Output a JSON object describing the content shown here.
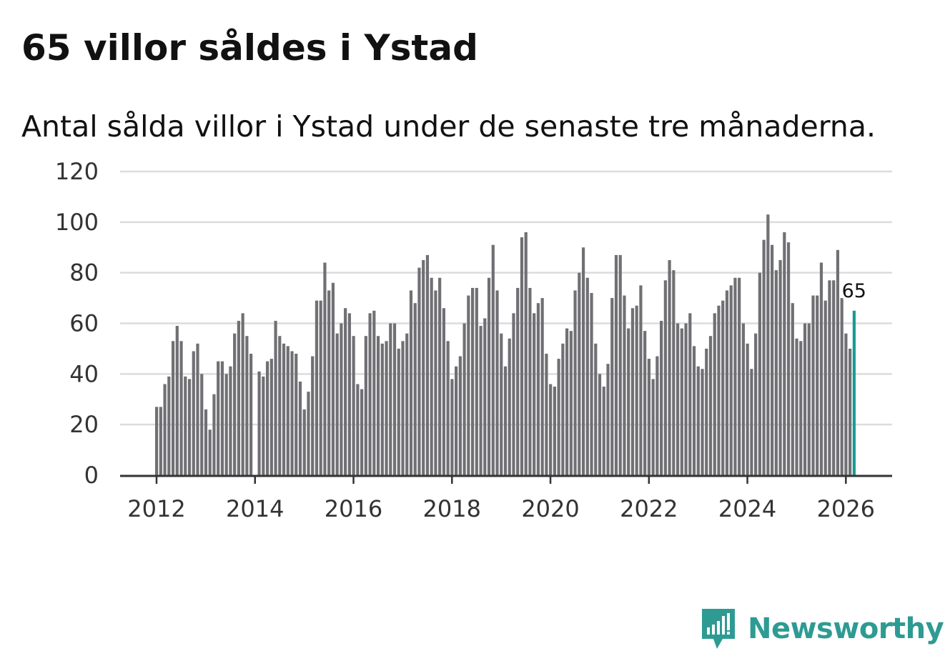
{
  "title": "65 villor såldes i Ystad",
  "subtitle": "Antal sålda villor i Ystad under de senaste tre månaderna.",
  "brand": {
    "name": "Newsworthy",
    "color": "#2e9b93",
    "icon": "bar-chart-speech-bubble-icon"
  },
  "colors": {
    "bar": "#707074",
    "highlight": "#1b9a93",
    "grid": "#dcdcdc",
    "axis": "#333333"
  },
  "chart_data": {
    "type": "bar",
    "title": "65 villor såldes i Ystad",
    "subtitle": "Antal sålda villor i Ystad under de senaste tre månaderna.",
    "xlabel": "",
    "ylabel": "",
    "ylim": [
      0,
      120
    ],
    "yticks": [
      0,
      20,
      40,
      60,
      80,
      100,
      120
    ],
    "xticks": [
      "2012",
      "2014",
      "2016",
      "2018",
      "2020",
      "2022",
      "2024",
      "2026"
    ],
    "grid": true,
    "legend": "none",
    "first_period": "2012-01",
    "last_period": "2026-03",
    "highlight_label": "65",
    "values": [
      27,
      27,
      36,
      39,
      53,
      59,
      53,
      39,
      38,
      49,
      52,
      40,
      26,
      18,
      32,
      45,
      45,
      40,
      43,
      56,
      61,
      64,
      55,
      48,
      0,
      41,
      39,
      45,
      46,
      61,
      55,
      52,
      51,
      49,
      48,
      37,
      26,
      33,
      47,
      69,
      69,
      84,
      73,
      76,
      56,
      60,
      66,
      64,
      55,
      36,
      34,
      55,
      64,
      65,
      55,
      52,
      53,
      60,
      60,
      50,
      53,
      56,
      73,
      68,
      82,
      85,
      87,
      78,
      73,
      78,
      66,
      53,
      38,
      43,
      47,
      60,
      71,
      74,
      74,
      59,
      62,
      78,
      91,
      73,
      56,
      43,
      54,
      64,
      74,
      94,
      96,
      74,
      64,
      68,
      70,
      48,
      36,
      35,
      46,
      52,
      58,
      57,
      73,
      80,
      90,
      78,
      72,
      52,
      40,
      35,
      44,
      70,
      87,
      87,
      71,
      58,
      66,
      67,
      75,
      57,
      46,
      38,
      47,
      61,
      77,
      85,
      81,
      60,
      58,
      60,
      64,
      51,
      43,
      42,
      50,
      55,
      64,
      67,
      69,
      73,
      75,
      78,
      78,
      60,
      52,
      42,
      56,
      80,
      93,
      103,
      91,
      81,
      85,
      96,
      92,
      68,
      54,
      53,
      60,
      60,
      71,
      71,
      84,
      69,
      77,
      77,
      89,
      70,
      56,
      50,
      65
    ]
  }
}
